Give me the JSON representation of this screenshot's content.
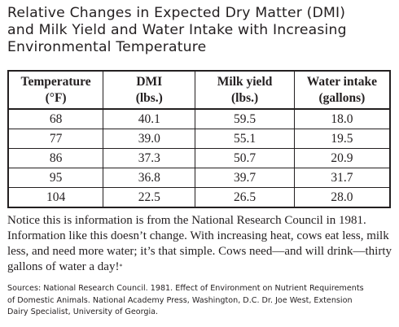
{
  "title": {
    "lines": [
      "Relative Changes in Expected Dry Matter (DMI)",
      "and Milk Yield and Water Intake with Increasing",
      "Environmental Temperature"
    ]
  },
  "table": {
    "headers": [
      {
        "line1": "Temperature",
        "line2": "(°F)"
      },
      {
        "line1": "DMI",
        "line2": "(lbs.)"
      },
      {
        "line1": "Milk yield",
        "line2": "(lbs.)"
      },
      {
        "line1": "Water intake",
        "line2": "(gallons)"
      }
    ],
    "rows": [
      [
        "68",
        "40.1",
        "59.5",
        "18.0"
      ],
      [
        "77",
        "39.0",
        "55.1",
        "19.5"
      ],
      [
        "86",
        "37.3",
        "50.7",
        "20.9"
      ],
      [
        "95",
        "36.8",
        "39.7",
        "31.7"
      ],
      [
        "104",
        "22.5",
        "26.5",
        "28.0"
      ]
    ]
  },
  "note": {
    "lines": [
      "Notice this is information is from the National Research Council in 1981.",
      "Information like this doesn’t change. With increasing heat, cows eat less, milk",
      "less, and need more water; it’s that simple. Cows need—and will drink—thirty",
      "gallons of water a day!"
    ],
    "footnote_mark": "*"
  },
  "sources": {
    "lines": [
      "Sources: National Research Council. 1981. Effect of Environment on Nutrient Requirements",
      "of Domestic Animals. National Academy Press, Washington, D.C. Dr. Joe West, Extension",
      "Dairy Specialist, University of Georgia."
    ]
  },
  "chart_data": {
    "type": "table",
    "columns": [
      "Temperature (°F)",
      "DMI (lbs.)",
      "Milk yield (lbs.)",
      "Water intake (gallons)"
    ],
    "rows": [
      [
        68,
        40.1,
        59.5,
        18.0
      ],
      [
        77,
        39.0,
        55.1,
        19.5
      ],
      [
        86,
        37.3,
        50.7,
        20.9
      ],
      [
        95,
        36.8,
        39.7,
        31.7
      ],
      [
        104,
        22.5,
        26.5,
        28.0
      ]
    ],
    "title": "Relative Changes in Expected Dry Matter (DMI) and Milk Yield and Water Intake with Increasing Environmental Temperature"
  }
}
